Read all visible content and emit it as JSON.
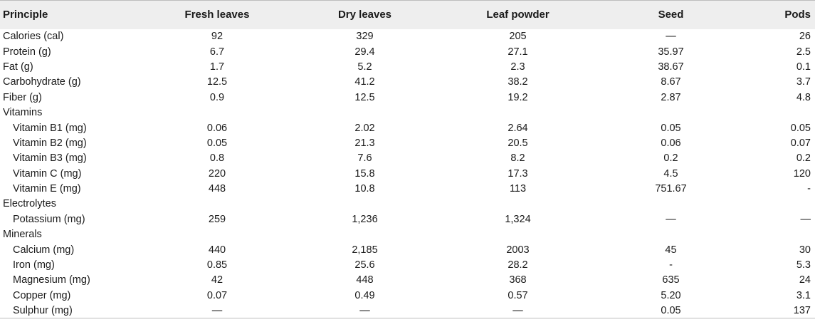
{
  "table": {
    "headers": [
      "Principle",
      "Fresh leaves",
      "Dry leaves",
      "Leaf powder",
      "Seed",
      "Pods"
    ],
    "rows": [
      {
        "label": "Calories (cal)",
        "indent": false,
        "values": [
          "92",
          "329",
          "205",
          "—",
          "26"
        ]
      },
      {
        "label": "Protein (g)",
        "indent": false,
        "values": [
          "6.7",
          "29.4",
          "27.1",
          "35.97",
          "2.5"
        ]
      },
      {
        "label": "Fat (g)",
        "indent": false,
        "values": [
          "1.7",
          "5.2",
          "2.3",
          "38.67",
          "0.1"
        ]
      },
      {
        "label": "Carbohydrate (g)",
        "indent": false,
        "values": [
          "12.5",
          "41.2",
          "38.2",
          "8.67",
          "3.7"
        ]
      },
      {
        "label": "Fiber (g)",
        "indent": false,
        "values": [
          "0.9",
          "12.5",
          "19.2",
          "2.87",
          "4.8"
        ]
      },
      {
        "label": "Vitamins",
        "indent": false,
        "values": [
          "",
          "",
          "",
          "",
          ""
        ]
      },
      {
        "label": "Vitamin B1 (mg)",
        "indent": true,
        "values": [
          "0.06",
          "2.02",
          "2.64",
          "0.05",
          "0.05"
        ]
      },
      {
        "label": "Vitamin B2 (mg)",
        "indent": true,
        "values": [
          "0.05",
          "21.3",
          "20.5",
          "0.06",
          "0.07"
        ]
      },
      {
        "label": "Vitamin B3 (mg)",
        "indent": true,
        "values": [
          "0.8",
          "7.6",
          "8.2",
          "0.2",
          "0.2"
        ]
      },
      {
        "label": "Vitamin C (mg)",
        "indent": true,
        "values": [
          "220",
          "15.8",
          "17.3",
          "4.5",
          "120"
        ]
      },
      {
        "label": "Vitamin E (mg)",
        "indent": true,
        "values": [
          "448",
          "10.8",
          "113",
          "751.67",
          "-"
        ]
      },
      {
        "label": "Electrolytes",
        "indent": false,
        "values": [
          "",
          "",
          "",
          "",
          ""
        ]
      },
      {
        "label": "Potassium (mg)",
        "indent": true,
        "values": [
          "259",
          "1,236",
          "1,324",
          "—",
          "—"
        ]
      },
      {
        "label": "Minerals",
        "indent": false,
        "values": [
          "",
          "",
          "",
          "",
          ""
        ]
      },
      {
        "label": "Calcium (mg)",
        "indent": true,
        "values": [
          "440",
          "2,185",
          "2003",
          "45",
          "30"
        ]
      },
      {
        "label": "Iron (mg)",
        "indent": true,
        "values": [
          "0.85",
          "25.6",
          "28.2",
          "-",
          "5.3"
        ]
      },
      {
        "label": "Magnesium (mg)",
        "indent": true,
        "values": [
          "42",
          "448",
          "368",
          "635",
          "24"
        ]
      },
      {
        "label": "Copper (mg)",
        "indent": true,
        "values": [
          "0.07",
          "0.49",
          "0.57",
          "5.20",
          "3.1"
        ]
      },
      {
        "label": "Sulphur (mg)",
        "indent": true,
        "values": [
          "—",
          "—",
          "—",
          "0.05",
          "137"
        ]
      }
    ]
  }
}
